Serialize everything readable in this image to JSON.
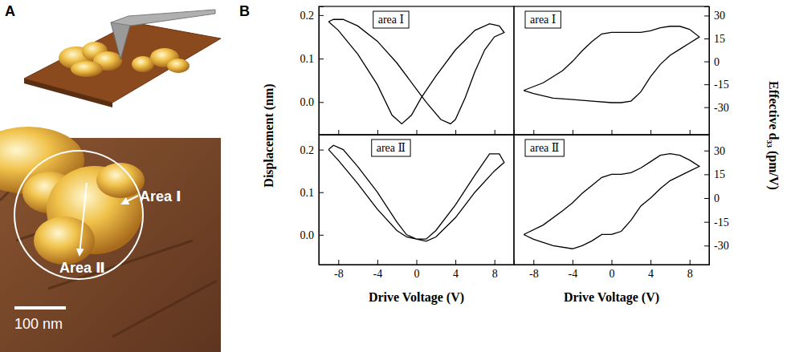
{
  "panel_labels": [
    "A",
    "B"
  ],
  "image": {
    "labels": [
      "Area Ⅰ",
      "Area Ⅱ"
    ],
    "scale_bar": "100 nm"
  },
  "chart_data": [
    {
      "type": "line",
      "title": "area Ⅰ",
      "ylabel": "Displacement (nm)",
      "color": "#000000",
      "tick_labels": "y",
      "xlim": [
        -10,
        10
      ],
      "xticks": [
        -8,
        -4,
        0,
        4,
        8
      ],
      "ylim": [
        -0.075,
        0.22
      ],
      "yticks": [
        {
          "value": 0,
          "label": "0.0"
        },
        0.1,
        0.2
      ],
      "series": [
        {
          "x": [
            -9,
            -8,
            -6,
            -4,
            -2.5,
            -1.5,
            -0.5,
            0.5,
            2,
            4,
            6,
            7.5,
            8.5,
            9,
            8,
            7,
            6,
            5,
            4,
            3.5,
            2.5,
            1,
            0,
            -2,
            -4,
            -6,
            -7.5,
            -8.5,
            -9
          ],
          "values": [
            0.185,
            0.165,
            0.11,
            0.04,
            -0.03,
            -0.05,
            -0.03,
            0.01,
            0.06,
            0.12,
            0.165,
            0.18,
            0.175,
            0.16,
            0.15,
            0.12,
            0.07,
            0.01,
            -0.04,
            -0.05,
            -0.04,
            0,
            0.03,
            0.09,
            0.14,
            0.175,
            0.19,
            0.19,
            0.185
          ]
        }
      ]
    },
    {
      "type": "line",
      "title": "area Ⅰ",
      "ylabel": "Effective d₃₃ (pm/V)",
      "color": "#000000",
      "tick_labels": "y",
      "xlim": [
        -10,
        10
      ],
      "xticks": [
        -8,
        -4,
        0,
        4,
        8
      ],
      "ylim": [
        -48,
        36
      ],
      "yticks": [
        -30,
        -15,
        0,
        15,
        30
      ],
      "series": [
        {
          "x": [
            -9,
            -7,
            -5,
            -4,
            -3,
            -2,
            -1,
            0,
            1,
            2,
            3,
            4,
            5,
            6,
            7,
            8,
            9,
            8,
            7,
            6,
            5,
            4,
            3,
            2,
            1,
            0,
            -2,
            -4,
            -6,
            -8,
            -9
          ],
          "values": [
            -19,
            -14,
            -6,
            0,
            7,
            13,
            18,
            19,
            19,
            19,
            19,
            20,
            22,
            23,
            23,
            21,
            16,
            12,
            8,
            4,
            -2,
            -10,
            -20,
            -26,
            -27,
            -27,
            -26,
            -25,
            -24,
            -21,
            -19
          ]
        }
      ]
    },
    {
      "type": "line",
      "title": "area Ⅱ",
      "xlabel": "Drive Voltage (V)",
      "color": "#000000",
      "xlim": [
        -10,
        10
      ],
      "xticks": [
        -8,
        -4,
        0,
        4,
        8
      ],
      "ylim": [
        -0.07,
        0.235
      ],
      "yticks": [
        {
          "value": 0,
          "label": "0.0"
        },
        0.1,
        0.2
      ],
      "series": [
        {
          "x": [
            -9,
            -8,
            -6,
            -4,
            -2,
            -1,
            0,
            1,
            2,
            4,
            6,
            7.5,
            8.5,
            9,
            8,
            6,
            4,
            2,
            1,
            0,
            -1,
            -2,
            -4,
            -6,
            -7.5,
            -8.5,
            -9
          ],
          "values": [
            0.2,
            0.175,
            0.12,
            0.06,
            0.01,
            -0.005,
            -0.01,
            -0.01,
            0.01,
            0.07,
            0.14,
            0.19,
            0.19,
            0.17,
            0.15,
            0.1,
            0.04,
            -0.005,
            -0.015,
            -0.01,
            0,
            0.03,
            0.1,
            0.16,
            0.2,
            0.21,
            0.2
          ]
        }
      ]
    },
    {
      "type": "line",
      "title": "area Ⅱ",
      "xlabel": "Drive Voltage (V)",
      "color": "#000000",
      "xlim": [
        -10,
        10
      ],
      "xticks": [
        -8,
        -4,
        0,
        4,
        8
      ],
      "ylim": [
        -42,
        40
      ],
      "yticks": [
        -30,
        -15,
        0,
        15,
        30
      ],
      "series": [
        {
          "x": [
            -9,
            -7,
            -5,
            -4,
            -3,
            -2,
            -1,
            0,
            1,
            2,
            3,
            4,
            5,
            6,
            7,
            8,
            9,
            8,
            7,
            6,
            5,
            4,
            3,
            2,
            1,
            0,
            -1,
            -2,
            -3,
            -4,
            -6,
            -8,
            -9
          ],
          "values": [
            -23,
            -17,
            -8,
            -3,
            3,
            8,
            13,
            15,
            15,
            16,
            19,
            23,
            27,
            28,
            27,
            24,
            20,
            17,
            14,
            11,
            6,
            0,
            -5,
            -14,
            -21,
            -23,
            -23,
            -27,
            -30,
            -32,
            -30,
            -26,
            -23
          ]
        }
      ]
    }
  ]
}
